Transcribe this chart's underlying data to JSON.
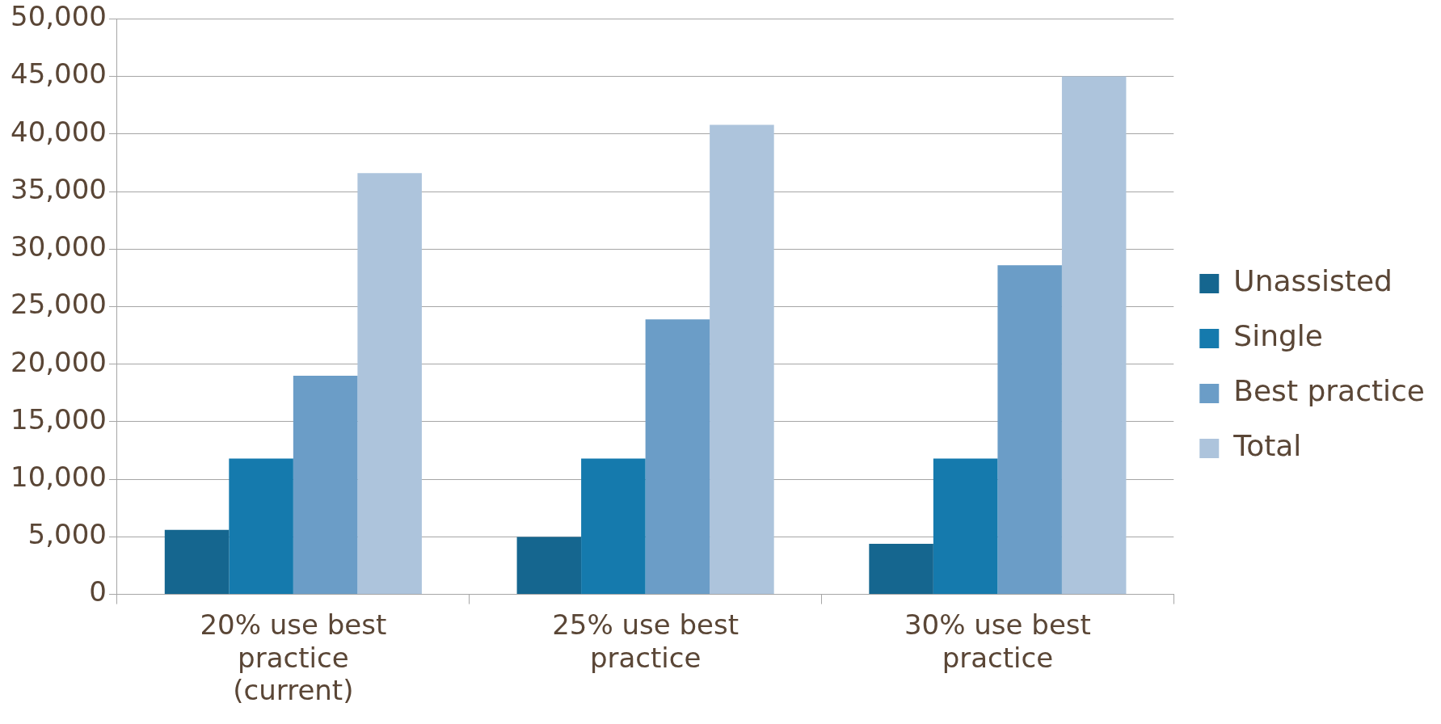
{
  "chart_data": {
    "type": "bar",
    "categories": [
      "20% use best practice (current)",
      "25% use best practice",
      "30% use best practice"
    ],
    "series": [
      {
        "name": "Unassisted",
        "color": "#15668f",
        "values": [
          5600,
          5000,
          4400
        ]
      },
      {
        "name": "Single",
        "color": "#157aad",
        "values": [
          11800,
          11800,
          11800
        ]
      },
      {
        "name": "Best practice",
        "color": "#6b9dc7",
        "values": [
          19000,
          23900,
          28600
        ]
      },
      {
        "name": "Total",
        "color": "#adc4dc",
        "values": [
          36600,
          40800,
          45000
        ]
      }
    ],
    "ylim": [
      0,
      50000
    ],
    "yticks": [
      0,
      {
        "value": 5000,
        "label": "5,000"
      },
      {
        "value": 10000,
        "label": "10,000"
      },
      {
        "value": 15000,
        "label": "15,000"
      },
      {
        "value": 20000,
        "label": "20,000"
      },
      {
        "value": 25000,
        "label": "25,000"
      },
      {
        "value": 30000,
        "label": "30,000"
      },
      {
        "value": 35000,
        "label": "35,000"
      },
      {
        "value": 40000,
        "label": "40,000"
      },
      {
        "value": 45000,
        "label": "45,000"
      },
      {
        "value": 50000,
        "label": "50,000"
      }
    ],
    "grid": "y",
    "legend": "right"
  }
}
